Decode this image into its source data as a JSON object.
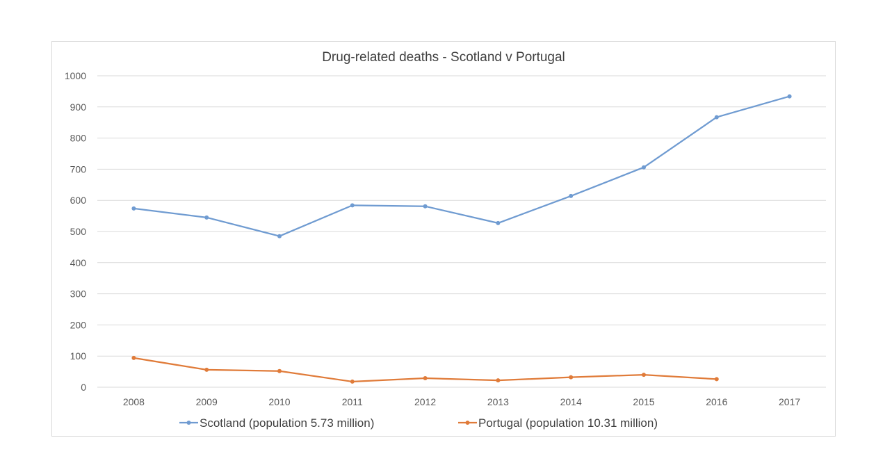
{
  "chart_data": {
    "type": "line",
    "title": "Drug-related deaths - Scotland v Portugal",
    "xlabel": "",
    "ylabel": "",
    "categories": [
      "2008",
      "2009",
      "2010",
      "2011",
      "2012",
      "2013",
      "2014",
      "2015",
      "2016",
      "2017"
    ],
    "ylim": [
      0,
      1000
    ],
    "yticks": [
      0,
      100,
      200,
      300,
      400,
      500,
      600,
      700,
      800,
      900,
      1000
    ],
    "grid": true,
    "legend_position": "bottom",
    "series": [
      {
        "name": "Scotland (population 5.73 million)",
        "color": "#6f9bd1",
        "values": [
          574,
          545,
          485,
          584,
          581,
          527,
          614,
          706,
          867,
          934
        ]
      },
      {
        "name": "Portugal (population 10.31 million)",
        "color": "#e07b39",
        "values": [
          94,
          56,
          52,
          18,
          29,
          22,
          32,
          40,
          26,
          null
        ]
      }
    ]
  }
}
